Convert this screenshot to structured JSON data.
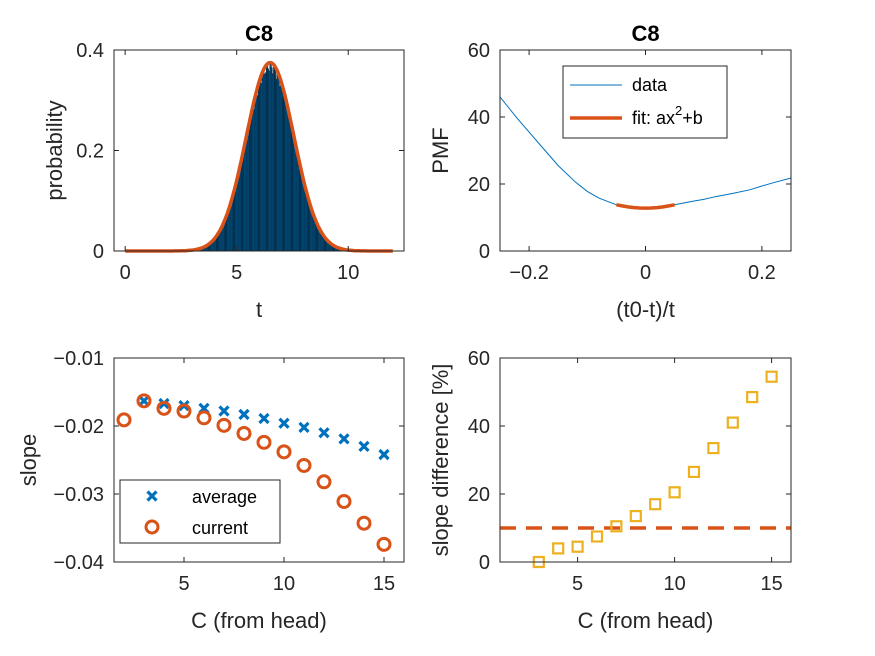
{
  "chart_data": [
    {
      "type": "bar",
      "title": "C8",
      "xlabel": "t",
      "ylabel": "probability",
      "xlim": [
        -0.5,
        12.5
      ],
      "ylim": [
        0,
        0.4
      ],
      "xticks": [
        0,
        5,
        10
      ],
      "yticks": [
        0,
        0.2,
        0.4
      ],
      "ytick_labels": [
        "0",
        "0.2",
        "0.4"
      ],
      "histogram": {
        "range": [
          2.0,
          11.0
        ],
        "bin_width": 0.04,
        "color": "#0072BD"
      },
      "fit_curve": {
        "mean": 6.5,
        "sd": 1.07,
        "peak": 0.375,
        "x_range": [
          0,
          12
        ],
        "color": "#D95319"
      }
    },
    {
      "type": "line",
      "title": "C8",
      "xlabel": "(t0-t)/t",
      "ylabel": "PMF",
      "xlim": [
        -0.25,
        0.25
      ],
      "ylim": [
        0,
        60
      ],
      "xticks": [
        -0.2,
        0,
        0.2
      ],
      "yticks": [
        0,
        20,
        40,
        60
      ],
      "series": [
        {
          "name": "data",
          "color": "#0072BD",
          "x": [
            -0.25,
            -0.22,
            -0.2,
            -0.18,
            -0.15,
            -0.12,
            -0.1,
            -0.08,
            -0.05,
            -0.03,
            0,
            0.03,
            0.05,
            0.08,
            0.1,
            0.12,
            0.15,
            0.18,
            0.2,
            0.22,
            0.25
          ],
          "y": [
            46,
            39.5,
            35.5,
            31.5,
            25.5,
            20.5,
            17.8,
            15.8,
            13.8,
            13.2,
            12.8,
            13.1,
            13.8,
            14.8,
            15.4,
            16.2,
            17.2,
            18.3,
            19.4,
            20.4,
            21.8
          ]
        },
        {
          "name": "fit: ax²+b",
          "color": "#D95319",
          "x": [
            -0.05,
            -0.04,
            -0.03,
            -0.02,
            -0.01,
            0,
            0.01,
            0.02,
            0.03,
            0.04,
            0.05
          ],
          "y": [
            13.8,
            13.45,
            13.16,
            12.97,
            12.84,
            12.8,
            12.84,
            12.97,
            13.16,
            13.45,
            13.8
          ]
        }
      ],
      "legend": {
        "placement": "top",
        "entries": [
          {
            "text": "data"
          },
          {
            "base": "fit: ax",
            "sup": "2",
            "tail": "+b"
          }
        ]
      }
    },
    {
      "type": "scatter",
      "xlabel": "C (from head)",
      "ylabel": "slope",
      "xlim": [
        1.5,
        16
      ],
      "ylim": [
        -0.04,
        -0.01
      ],
      "xticks": [
        5,
        10,
        15
      ],
      "yticks": [
        -0.04,
        -0.03,
        -0.02,
        -0.01
      ],
      "series": [
        {
          "name": "average",
          "marker": "x",
          "color": "#0072BD",
          "x": [
            3,
            4,
            5,
            6,
            7,
            8,
            9,
            10,
            11,
            12,
            13,
            14,
            15
          ],
          "y": [
            -0.0163,
            -0.0167,
            -0.017,
            -0.0174,
            -0.0178,
            -0.0183,
            -0.0189,
            -0.0196,
            -0.0202,
            -0.021,
            -0.0219,
            -0.023,
            -0.0242
          ]
        },
        {
          "name": "current",
          "marker": "o",
          "color": "#D95319",
          "x": [
            2,
            3,
            4,
            5,
            6,
            7,
            8,
            9,
            10,
            11,
            12,
            13,
            14,
            15
          ],
          "y": [
            -0.0191,
            -0.0163,
            -0.0174,
            -0.0178,
            -0.0188,
            -0.0199,
            -0.0211,
            -0.0224,
            -0.0238,
            -0.0258,
            -0.0282,
            -0.0311,
            -0.0343,
            -0.0374
          ]
        }
      ],
      "legend": {
        "placement": "bottom-left"
      }
    },
    {
      "type": "scatter",
      "xlabel": "C (from head)",
      "ylabel": "slope difference [%]",
      "xlim": [
        1,
        16
      ],
      "ylim": [
        0,
        60
      ],
      "xticks": [
        5,
        10,
        15
      ],
      "yticks": [
        0,
        20,
        40,
        60
      ],
      "series": [
        {
          "marker": "square",
          "color": "#EDB120",
          "x": [
            3,
            4,
            5,
            6,
            7,
            8,
            9,
            10,
            11,
            12,
            13,
            14,
            15
          ],
          "y": [
            0,
            4,
            4.5,
            7.5,
            10.5,
            13.5,
            17,
            20.5,
            26.5,
            33.5,
            41,
            48.5,
            54.5
          ]
        }
      ],
      "reference_line": {
        "y": 10,
        "style": "dashed",
        "color": "#D95319"
      }
    }
  ]
}
